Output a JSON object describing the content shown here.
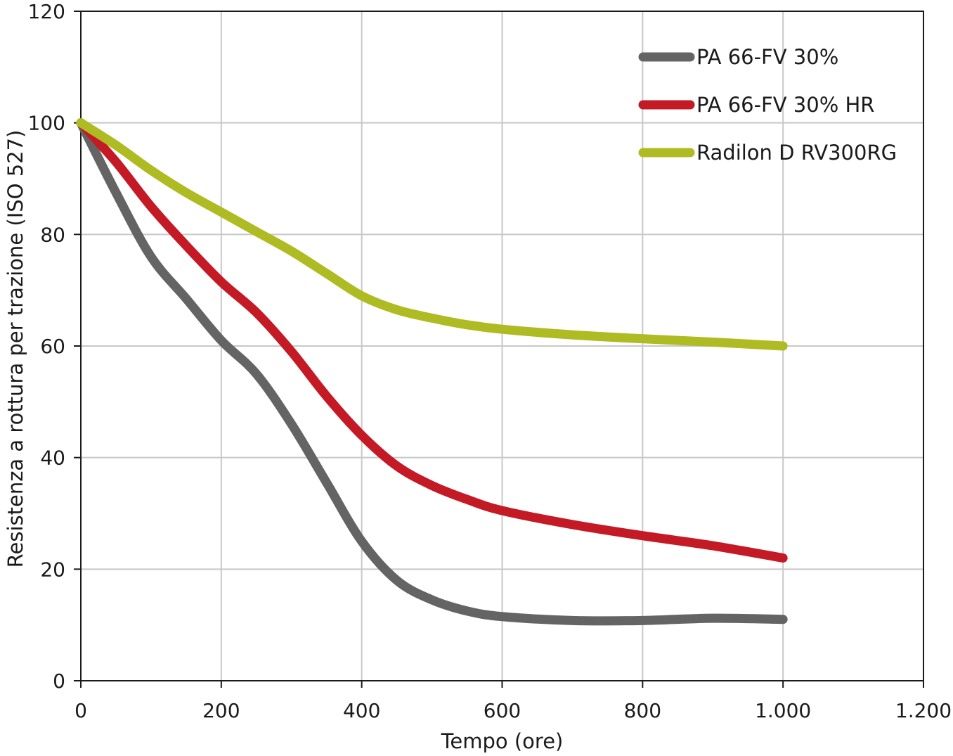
{
  "chart_data": {
    "type": "line",
    "xlabel": "Tempo (ore)",
    "ylabel": "Resistenza a rottura per trazione (ISO 527)",
    "xlim": [
      0,
      1200
    ],
    "ylim": [
      0,
      120
    ],
    "x_ticks": [
      0,
      200,
      400,
      600,
      800,
      1000,
      1200
    ],
    "x_tick_labels": [
      "0",
      "200",
      "400",
      "600",
      "800",
      "1.000",
      "1.200"
    ],
    "y_ticks": [
      0,
      20,
      40,
      60,
      80,
      100,
      120
    ],
    "y_tick_labels": [
      "0",
      "20",
      "40",
      "60",
      "80",
      "100",
      "120"
    ],
    "grid": true,
    "legend_position": "top-right",
    "series": [
      {
        "name": "PA 66-FV 30%",
        "color": "#646464",
        "x": [
          0,
          50,
          100,
          150,
          200,
          250,
          300,
          350,
          400,
          450,
          500,
          550,
          600,
          700,
          800,
          900,
          1000
        ],
        "y": [
          100,
          87.5,
          76,
          68.5,
          61,
          55,
          46,
          35.5,
          25,
          18,
          14.5,
          12.5,
          11.5,
          10.8,
          10.8,
          11.2,
          11
        ]
      },
      {
        "name": "PA 66-FV 30% HR",
        "color": "#c41a25",
        "x": [
          0,
          50,
          100,
          150,
          200,
          250,
          300,
          350,
          400,
          450,
          500,
          550,
          600,
          700,
          800,
          900,
          1000
        ],
        "y": [
          100,
          93,
          85,
          78,
          71.5,
          66,
          59,
          51,
          44,
          38.5,
          35,
          32.5,
          30.5,
          28,
          26,
          24.2,
          22
        ]
      },
      {
        "name": "Radilon D RV300RG",
        "color": "#afbb23",
        "x": [
          0,
          50,
          100,
          150,
          200,
          250,
          300,
          350,
          400,
          450,
          500,
          550,
          600,
          700,
          800,
          900,
          1000
        ],
        "y": [
          100,
          96,
          91.5,
          87.5,
          84,
          80.5,
          77,
          73,
          69,
          66.5,
          65,
          63.8,
          63,
          62,
          61.3,
          60.7,
          60
        ]
      }
    ]
  }
}
